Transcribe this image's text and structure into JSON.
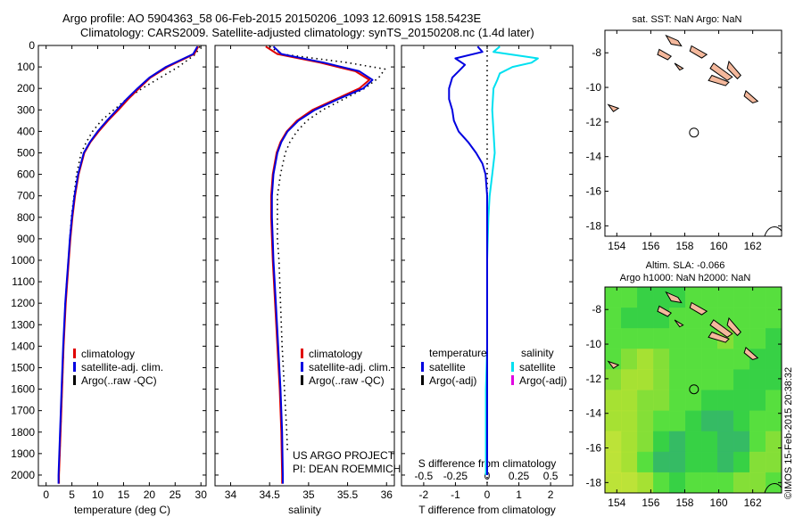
{
  "header": {
    "line1": "Argo profile: AO 5904363_58 06-Feb-2015 20150206_1093 12.6091S 158.5423E",
    "line2": "Climatology: CARS2009. Satellite-adjusted climatology: synTS_20150208.nc (1.4d later)"
  },
  "colors": {
    "climatology": "#e00000",
    "satellite": "#0000e0",
    "argo": "#000000",
    "s_satellite": "#00e0f0",
    "s_argo": "#e000e0",
    "land": "#f4b89c",
    "sla_green": "#30d830"
  },
  "chart_data": [
    {
      "id": "temperature",
      "type": "line",
      "xlabel": "temperature (deg C)",
      "ylabel": "depth",
      "xlim": [
        -1.5,
        31
      ],
      "ylim": [
        2050,
        0
      ],
      "xticks": [
        "0",
        "5",
        "10",
        "15",
        "20",
        "25",
        "30"
      ],
      "yticks": [
        "0",
        "100",
        "200",
        "300",
        "400",
        "500",
        "600",
        "700",
        "800",
        "900",
        "1000",
        "1100",
        "1200",
        "1300",
        "1400",
        "1500",
        "1600",
        "1700",
        "1800",
        "1900",
        "2000"
      ],
      "legend": [
        "climatology",
        "satellite-adj. clim.",
        "Argo(..raw -QC)"
      ],
      "series": [
        {
          "name": "climatology",
          "depth": [
            5,
            40,
            100,
            150,
            200,
            250,
            300,
            350,
            400,
            450,
            500,
            600,
            700,
            800,
            900,
            1000,
            1100,
            1200,
            1400,
            1600,
            1800,
            2000,
            2040
          ],
          "values": [
            29.5,
            28.7,
            23.5,
            20.2,
            18.0,
            15.9,
            14.0,
            12.0,
            10.2,
            8.6,
            7.4,
            6.3,
            5.6,
            5.1,
            4.7,
            4.4,
            4.1,
            3.8,
            3.4,
            3.1,
            2.8,
            2.5,
            2.5
          ]
        },
        {
          "name": "satellite-adj. clim.",
          "depth": [
            5,
            40,
            100,
            150,
            200,
            250,
            300,
            350,
            400,
            450,
            500,
            600,
            700,
            800,
            900,
            1000,
            1100,
            1200,
            1400,
            1600,
            1800,
            2000,
            2040
          ],
          "values": [
            29.3,
            28.5,
            23.2,
            20.0,
            17.7,
            15.6,
            13.7,
            11.8,
            10.0,
            8.5,
            7.3,
            6.2,
            5.5,
            5.0,
            4.6,
            4.3,
            4.0,
            3.7,
            3.3,
            3.0,
            2.7,
            2.4,
            2.4
          ]
        },
        {
          "name": "Argo(..raw -QC)",
          "depth": [
            5,
            40,
            100,
            150,
            200,
            250,
            300,
            350,
            400,
            450,
            500,
            600,
            700,
            800,
            900,
            1000,
            1100,
            1200,
            1400,
            1600,
            1800,
            2000
          ],
          "values": [
            29.8,
            29.0,
            25.6,
            22.1,
            18.6,
            15.6,
            13.1,
            10.7,
            9.0,
            7.8,
            6.8,
            5.9,
            5.4,
            4.9,
            4.6,
            4.3,
            4.0,
            3.7,
            3.4,
            3.1,
            2.8,
            2.5
          ]
        }
      ]
    },
    {
      "id": "salinity",
      "type": "line",
      "xlabel": "salinity",
      "ylim": [
        2050,
        0
      ],
      "xlim": [
        33.8,
        36.1
      ],
      "xticks": [
        "34",
        "34.5",
        "35",
        "35.5",
        "36"
      ],
      "legend": [
        "climatology",
        "satellite-adj. clim.",
        "Argo(..raw -QC)"
      ],
      "annotation": [
        "US ARGO PROJECT",
        "PI: DEAN ROEMMICH"
      ],
      "series": [
        {
          "name": "climatology",
          "depth": [
            5,
            40,
            80,
            120,
            160,
            200,
            250,
            300,
            350,
            400,
            450,
            500,
            600,
            700,
            800,
            900,
            1000,
            1200,
            1400,
            1600,
            1800,
            2000,
            2040
          ],
          "values": [
            34.45,
            34.6,
            35.15,
            35.6,
            35.78,
            35.65,
            35.35,
            35.05,
            34.85,
            34.72,
            34.64,
            34.59,
            34.54,
            34.52,
            34.52,
            34.53,
            34.54,
            34.57,
            34.6,
            34.63,
            34.65,
            34.66,
            34.66
          ]
        },
        {
          "name": "satellite-adj. clim.",
          "depth": [
            5,
            40,
            80,
            120,
            160,
            200,
            250,
            300,
            350,
            400,
            450,
            500,
            600,
            700,
            800,
            900,
            1000,
            1200,
            1400,
            1600,
            1800,
            2000,
            2040
          ],
          "values": [
            34.55,
            34.65,
            35.2,
            35.65,
            35.82,
            35.7,
            35.38,
            35.08,
            34.87,
            34.73,
            34.65,
            34.6,
            34.55,
            34.53,
            34.53,
            34.54,
            34.55,
            34.58,
            34.61,
            34.64,
            34.66,
            34.67,
            34.67
          ]
        },
        {
          "name": "Argo(..raw -QC)",
          "depth": [
            5,
            40,
            80,
            110,
            150,
            200,
            250,
            300,
            350,
            400,
            450,
            500,
            600,
            700,
            800,
            900,
            1000,
            1200,
            1400,
            1600,
            1800,
            1900
          ],
          "values": [
            34.5,
            34.65,
            35.5,
            35.98,
            35.9,
            35.72,
            35.45,
            35.18,
            34.98,
            34.85,
            34.76,
            34.7,
            34.64,
            34.6,
            34.6,
            34.6,
            34.62,
            34.64,
            34.66,
            34.69,
            34.72,
            34.73
          ]
        }
      ]
    },
    {
      "id": "difference",
      "type": "line",
      "xlabel": "T difference from climatology",
      "top_label": "S difference from climatology",
      "ylim": [
        2050,
        0
      ],
      "xlim": [
        -2.7,
        2.7
      ],
      "xticks": [
        "-2",
        "-1",
        "0",
        "1",
        "2"
      ],
      "top_ticks": [
        "-0.5",
        "-0.25",
        "0",
        "0.25",
        "0.5"
      ],
      "legend": {
        "temperature": [
          "satellite",
          "Argo(-adj)"
        ],
        "salinity": [
          "satellite",
          "Argo(-adj)"
        ]
      },
      "legend_titles": [
        "temperature",
        "salinity"
      ],
      "series": [
        {
          "name": "T satellite",
          "depth": [
            5,
            30,
            60,
            90,
            120,
            150,
            200,
            250,
            300,
            350,
            400,
            450,
            500,
            550,
            600,
            700,
            800,
            1000,
            1200,
            1400,
            1600,
            1800,
            2000
          ],
          "values": [
            -0.3,
            -0.15,
            -1.0,
            -0.7,
            -0.9,
            -1.1,
            -1.2,
            -1.2,
            -1.1,
            -1.05,
            -0.9,
            -0.6,
            -0.35,
            -0.15,
            -0.05,
            0.0,
            0.0,
            0.0,
            0.0,
            0.0,
            0.0,
            0.0,
            0.0
          ]
        },
        {
          "name": "S satellite",
          "depth": [
            5,
            30,
            60,
            80,
            100,
            130,
            160,
            200,
            300,
            400,
            500,
            600,
            700,
            800,
            1000,
            1200,
            1400,
            1600,
            1800,
            2000
          ],
          "values": [
            0.1,
            0.05,
            0.4,
            0.35,
            0.2,
            0.1,
            0.08,
            0.05,
            0.04,
            0.05,
            0.06,
            0.04,
            0.02,
            0.01,
            0.0,
            0.0,
            0.0,
            -0.01,
            -0.01,
            -0.01
          ]
        },
        {
          "name": "T Argo(-adj)",
          "depth": [
            0,
            2050
          ],
          "values": [
            0,
            0
          ]
        }
      ]
    },
    {
      "id": "sst_map",
      "type": "scatter",
      "title": "sat. SST: NaN Argo: NaN",
      "xticks": [
        "154",
        "156",
        "158",
        "160",
        "162"
      ],
      "yticks": [
        "-8",
        "-10",
        "-12",
        "-14",
        "-16",
        "-18"
      ],
      "xlim": [
        153.3,
        163.7
      ],
      "ylim": [
        -18.6,
        -6.7
      ],
      "float_position": {
        "lon": 158.5423,
        "lat": -12.6091
      }
    },
    {
      "id": "sla_map",
      "type": "heatmap",
      "title_lines": [
        "Altim. SLA: -0.066",
        "Argo h1000: NaN h2000: NaN"
      ],
      "xticks": [
        "154",
        "156",
        "158",
        "160",
        "162"
      ],
      "yticks": [
        "-8",
        "-10",
        "-12",
        "-14",
        "-16",
        "-18"
      ],
      "xlim": [
        153.3,
        163.7
      ],
      "ylim": [
        -18.6,
        -6.7
      ],
      "float_position": {
        "lon": 158.5423,
        "lat": -12.6091
      }
    }
  ],
  "footer": {
    "signature": "©IMOS 15-Feb-2015 20:38:32"
  }
}
